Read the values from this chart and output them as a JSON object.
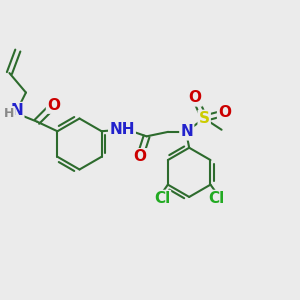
{
  "background_color": "#ebebeb",
  "bond_color": "#2d6b2d",
  "bond_width": 1.5,
  "atom_colors": {
    "N": "#2222cc",
    "O": "#cc0000",
    "S": "#cccc00",
    "Cl": "#22aa22",
    "H": "#888888",
    "C": "#2d6b2d"
  },
  "font_size_atoms": 11,
  "font_size_small": 9
}
